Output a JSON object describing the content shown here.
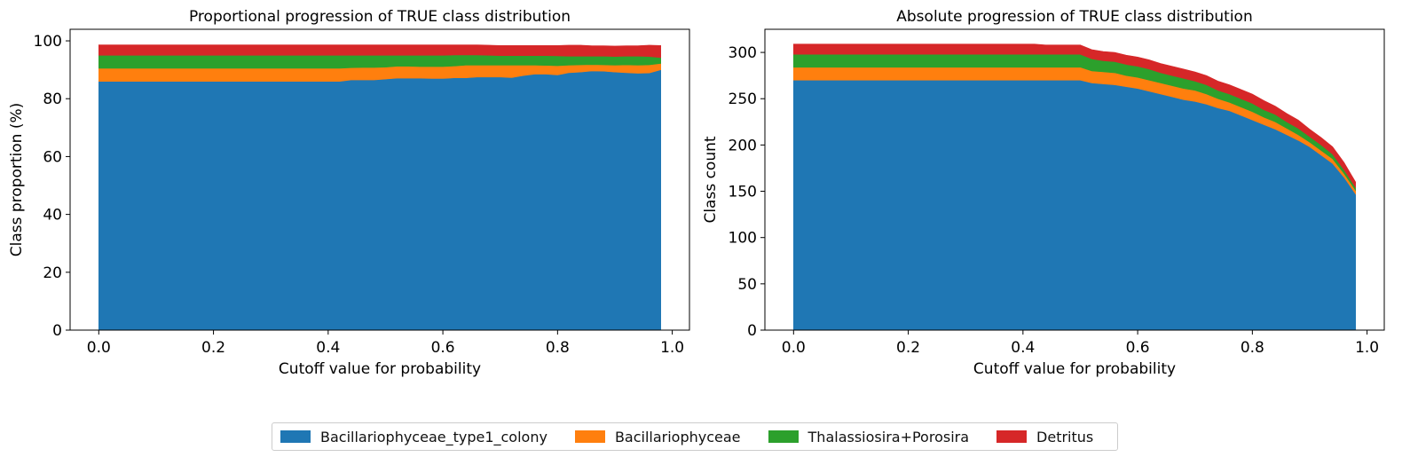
{
  "chart_data": [
    {
      "type": "area",
      "stacked": true,
      "title": "Proportional progression of TRUE class distribution",
      "xlabel": "Cutoff value for probability",
      "ylabel": "Class proportion (%)",
      "xlim": [
        -0.05,
        1.03
      ],
      "ylim": [
        0,
        104
      ],
      "xticks": [
        "0.0",
        "0.2",
        "0.4",
        "0.6",
        "0.8",
        "1.0"
      ],
      "yticks": [
        "0",
        "20",
        "40",
        "60",
        "80",
        "100"
      ],
      "x": [
        0.0,
        0.1,
        0.2,
        0.3,
        0.4,
        0.42,
        0.44,
        0.46,
        0.48,
        0.5,
        0.52,
        0.54,
        0.56,
        0.58,
        0.6,
        0.62,
        0.64,
        0.66,
        0.68,
        0.7,
        0.72,
        0.74,
        0.76,
        0.78,
        0.8,
        0.82,
        0.84,
        0.86,
        0.88,
        0.9,
        0.92,
        0.94,
        0.96,
        0.98
      ],
      "series": [
        {
          "name": "Bacillariophyceae_type1_colony",
          "values": [
            86.0,
            86.0,
            86.0,
            86.0,
            86.0,
            86.0,
            86.5,
            86.5,
            86.5,
            86.8,
            87.1,
            87.1,
            87.1,
            87.0,
            87.0,
            87.2,
            87.2,
            87.5,
            87.5,
            87.5,
            87.3,
            88.0,
            88.5,
            88.5,
            88.2,
            89.0,
            89.2,
            89.6,
            89.5,
            89.2,
            89.0,
            88.8,
            88.9,
            90.0
          ]
        },
        {
          "name": "Bacillariophyceae",
          "values": [
            4.5,
            4.5,
            4.5,
            4.5,
            4.5,
            4.5,
            4.2,
            4.3,
            4.3,
            4.1,
            4.1,
            4.1,
            4.0,
            4.1,
            4.1,
            4.1,
            4.4,
            4.1,
            4.1,
            4.1,
            4.3,
            3.6,
            3.1,
            3.0,
            3.2,
            2.6,
            2.5,
            2.2,
            2.2,
            2.4,
            2.7,
            2.8,
            2.8,
            2.2
          ]
        },
        {
          "name": "Thalassiosira+Porosira",
          "values": [
            4.5,
            4.5,
            4.5,
            4.5,
            4.5,
            4.5,
            4.3,
            4.2,
            4.2,
            4.1,
            3.8,
            3.8,
            3.9,
            3.9,
            3.9,
            3.8,
            3.5,
            3.5,
            3.4,
            3.3,
            3.3,
            3.3,
            3.3,
            3.4,
            3.4,
            3.1,
            3.0,
            2.9,
            3.0,
            3.0,
            3.0,
            3.1,
            2.9,
            2.0
          ]
        },
        {
          "name": "Detritus",
          "values": [
            3.6,
            3.6,
            3.6,
            3.6,
            3.6,
            3.6,
            3.6,
            3.6,
            3.6,
            3.6,
            3.6,
            3.6,
            3.6,
            3.6,
            3.6,
            3.5,
            3.5,
            3.5,
            3.5,
            3.5,
            3.5,
            3.5,
            3.5,
            3.5,
            3.6,
            3.8,
            3.8,
            3.6,
            3.6,
            3.6,
            3.6,
            3.6,
            3.9,
            4.2
          ]
        }
      ]
    },
    {
      "type": "area",
      "stacked": true,
      "title": "Absolute progression of TRUE class distribution",
      "xlabel": "Cutoff value for probability",
      "ylabel": "Class count",
      "xlim": [
        -0.05,
        1.03
      ],
      "ylim": [
        0,
        325
      ],
      "xticks": [
        "0.0",
        "0.2",
        "0.4",
        "0.6",
        "0.8",
        "1.0"
      ],
      "yticks": [
        "0",
        "50",
        "100",
        "150",
        "200",
        "250",
        "300"
      ],
      "x": [
        0.0,
        0.1,
        0.2,
        0.3,
        0.4,
        0.42,
        0.44,
        0.46,
        0.48,
        0.5,
        0.52,
        0.54,
        0.56,
        0.58,
        0.6,
        0.62,
        0.64,
        0.66,
        0.68,
        0.7,
        0.72,
        0.74,
        0.76,
        0.78,
        0.8,
        0.82,
        0.84,
        0.86,
        0.88,
        0.9,
        0.92,
        0.94,
        0.96,
        0.98
      ],
      "series": [
        {
          "name": "Bacillariophyceae_type1_colony",
          "values": [
            270,
            270,
            270,
            270,
            270,
            270,
            270,
            270,
            270,
            270,
            267,
            266,
            265,
            263,
            261,
            258,
            255,
            252,
            249,
            247,
            244,
            240,
            237,
            232,
            227,
            222,
            217,
            211,
            205,
            198,
            189,
            180,
            165,
            147
          ]
        },
        {
          "name": "Bacillariophyceae",
          "values": [
            14,
            14,
            14,
            14,
            14,
            14,
            14,
            14,
            14,
            14,
            13,
            13,
            13,
            12,
            12,
            12,
            12,
            12,
            12,
            12,
            11,
            10,
            9,
            9,
            9,
            8,
            8,
            7,
            6,
            5,
            5,
            5,
            4,
            4
          ]
        },
        {
          "name": "Thalassiosira+Porosira",
          "values": [
            14,
            14,
            14,
            14,
            14,
            14,
            14,
            14,
            14,
            14,
            13,
            12,
            12,
            12,
            12,
            12,
            11,
            11,
            11,
            10,
            10,
            9,
            9,
            9,
            9,
            8,
            8,
            7,
            7,
            6,
            6,
            5,
            4,
            3
          ]
        },
        {
          "name": "Detritus",
          "values": [
            11,
            11,
            11,
            11,
            11,
            11,
            10,
            10,
            10,
            10,
            10,
            10,
            10,
            10,
            10,
            10,
            10,
            10,
            10,
            10,
            10,
            10,
            10,
            10,
            10,
            10,
            9,
            9,
            9,
            8,
            8,
            8,
            8,
            6
          ]
        }
      ]
    }
  ],
  "legend": {
    "position": "bottom-center",
    "items": [
      {
        "label": "Bacillariophyceae_type1_colony",
        "color": "#1f77b4"
      },
      {
        "label": "Bacillariophyceae",
        "color": "#ff7f0e"
      },
      {
        "label": "Thalassiosira+Porosira",
        "color": "#2ca02c"
      },
      {
        "label": "Detritus",
        "color": "#d62728"
      }
    ]
  },
  "colors": [
    "#1f77b4",
    "#ff7f0e",
    "#2ca02c",
    "#d62728"
  ]
}
